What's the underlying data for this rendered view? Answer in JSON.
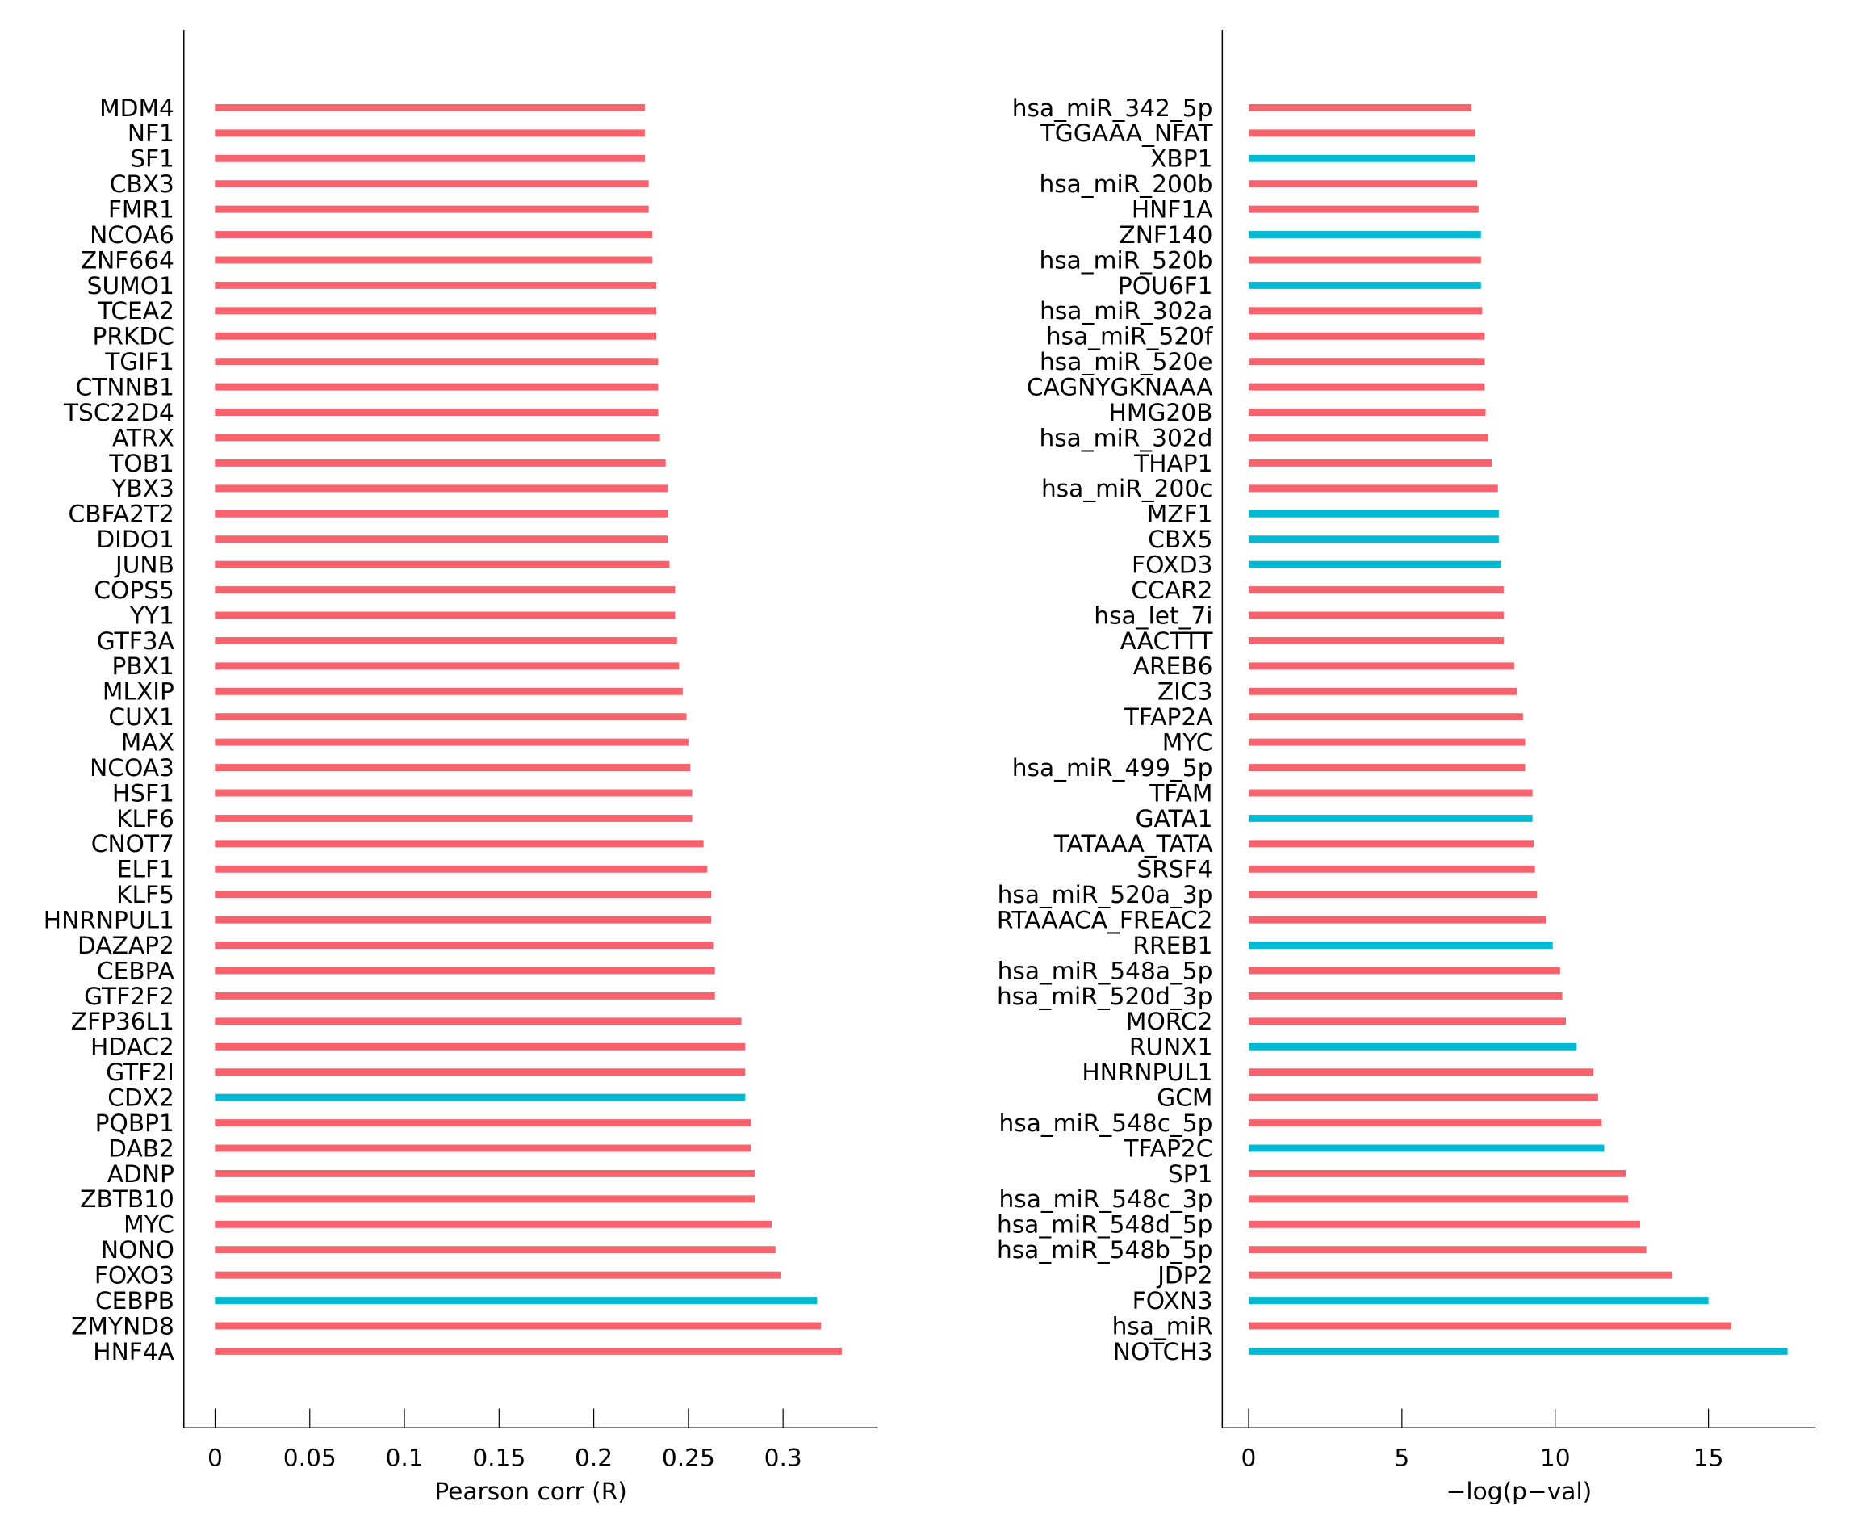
{
  "colors": {
    "default": "#F8626C",
    "highlight": "#00BAD3",
    "axis": "#000000"
  },
  "chart_data": [
    {
      "type": "bar",
      "orientation": "horizontal",
      "xlabel": "Pearson corr (R)",
      "xlim": [
        -0.0165,
        0.35
      ],
      "xticks": [
        0,
        0.05,
        0.1,
        0.15,
        0.2,
        0.25,
        0.3
      ],
      "xtick_labels": [
        "0",
        "0.05",
        "0.1",
        "0.15",
        "0.2",
        "0.25",
        "0.3"
      ],
      "categories": [
        "MDM4",
        "NF1",
        "SF1",
        "CBX3",
        "FMR1",
        "NCOA6",
        "ZNF664",
        "SUMO1",
        "TCEA2",
        "PRKDC",
        "TGIF1",
        "CTNNB1",
        "TSC22D4",
        "ATRX",
        "TOB1",
        "YBX3",
        "CBFA2T2",
        "DIDO1",
        "JUNB",
        "COPS5",
        "YY1",
        "GTF3A",
        "PBX1",
        "MLXIP",
        "CUX1",
        "MAX",
        "NCOA3",
        "HSF1",
        "KLF6",
        "CNOT7",
        "ELF1",
        "KLF5",
        "HNRNPUL1",
        "DAZAP2",
        "CEBPA",
        "GTF2F2",
        "ZFP36L1",
        "HDAC2",
        "GTF2I",
        "CDX2",
        "PQBP1",
        "DAB2",
        "ADNP",
        "ZBTB10",
        "MYC",
        "NONO",
        "FOXO3",
        "CEBPB",
        "ZMYND8",
        "HNF4A"
      ],
      "values": [
        0.227,
        0.227,
        0.227,
        0.229,
        0.229,
        0.231,
        0.231,
        0.233,
        0.233,
        0.233,
        0.234,
        0.234,
        0.234,
        0.235,
        0.238,
        0.239,
        0.239,
        0.239,
        0.24,
        0.243,
        0.243,
        0.244,
        0.245,
        0.247,
        0.249,
        0.25,
        0.251,
        0.252,
        0.252,
        0.258,
        0.26,
        0.262,
        0.262,
        0.263,
        0.264,
        0.264,
        0.278,
        0.28,
        0.28,
        0.28,
        0.283,
        0.283,
        0.285,
        0.285,
        0.294,
        0.296,
        0.299,
        0.318,
        0.32,
        0.331
      ],
      "highlighted": [
        "CDX2",
        "CEBPB"
      ]
    },
    {
      "type": "bar",
      "orientation": "horizontal",
      "xlabel": "−log(p−val)",
      "xlim": [
        -0.86,
        18.5
      ],
      "xticks": [
        0,
        5,
        10,
        15
      ],
      "xtick_labels": [
        "0",
        "5",
        "10",
        "15"
      ],
      "categories": [
        "hsa_miR_342_5p",
        "TGGAAA_NFAT",
        "XBP1",
        "hsa_miR_200b",
        "HNF1A",
        "ZNF140",
        "hsa_miR_520b",
        "POU6F1",
        "hsa_miR_302a",
        "hsa_miR_520f",
        "hsa_miR_520e",
        "CAGNYGKNAAA",
        "HMG20B",
        "hsa_miR_302d",
        "THAP1",
        "hsa_miR_200c",
        "MZF1",
        "CBX5",
        "FOXD3",
        "CCAR2",
        "hsa_let_7i",
        "AACTTT",
        "AREB6",
        "ZIC3",
        "TFAP2A",
        "MYC",
        "hsa_miR_499_5p",
        "TFAM",
        "GATA1",
        "TATAAA_TATA",
        "SRSF4",
        "hsa_miR_520a_3p",
        "RTAAACA_FREAC2",
        "RREB1",
        "hsa_miR_548a_5p",
        "hsa_miR_520d_3p",
        "MORC2",
        "RUNX1",
        "HNRNPUL1",
        "GCM",
        "hsa_miR_548c_5p",
        "TFAP2C",
        "SP1",
        "hsa_miR_548c_3p",
        "hsa_miR_548d_5p",
        "hsa_miR_548b_5p",
        "JDP2",
        "FOXN3",
        "hsa_miR",
        "NOTCH3"
      ],
      "values": [
        7.27,
        7.38,
        7.38,
        7.46,
        7.5,
        7.58,
        7.58,
        7.58,
        7.62,
        7.7,
        7.7,
        7.7,
        7.73,
        7.81,
        7.93,
        8.13,
        8.16,
        8.16,
        8.24,
        8.32,
        8.32,
        8.32,
        8.67,
        8.75,
        8.95,
        9.02,
        9.02,
        9.26,
        9.26,
        9.3,
        9.34,
        9.41,
        9.69,
        9.92,
        10.16,
        10.23,
        10.35,
        10.7,
        11.25,
        11.4,
        11.52,
        11.6,
        12.3,
        12.38,
        12.77,
        12.97,
        13.83,
        15.0,
        15.74,
        17.58
      ],
      "highlighted": [
        "XBP1",
        "ZNF140",
        "POU6F1",
        "MZF1",
        "CBX5",
        "FOXD3",
        "GATA1",
        "RREB1",
        "RUNX1",
        "TFAP2C",
        "FOXN3",
        "NOTCH3"
      ]
    }
  ]
}
